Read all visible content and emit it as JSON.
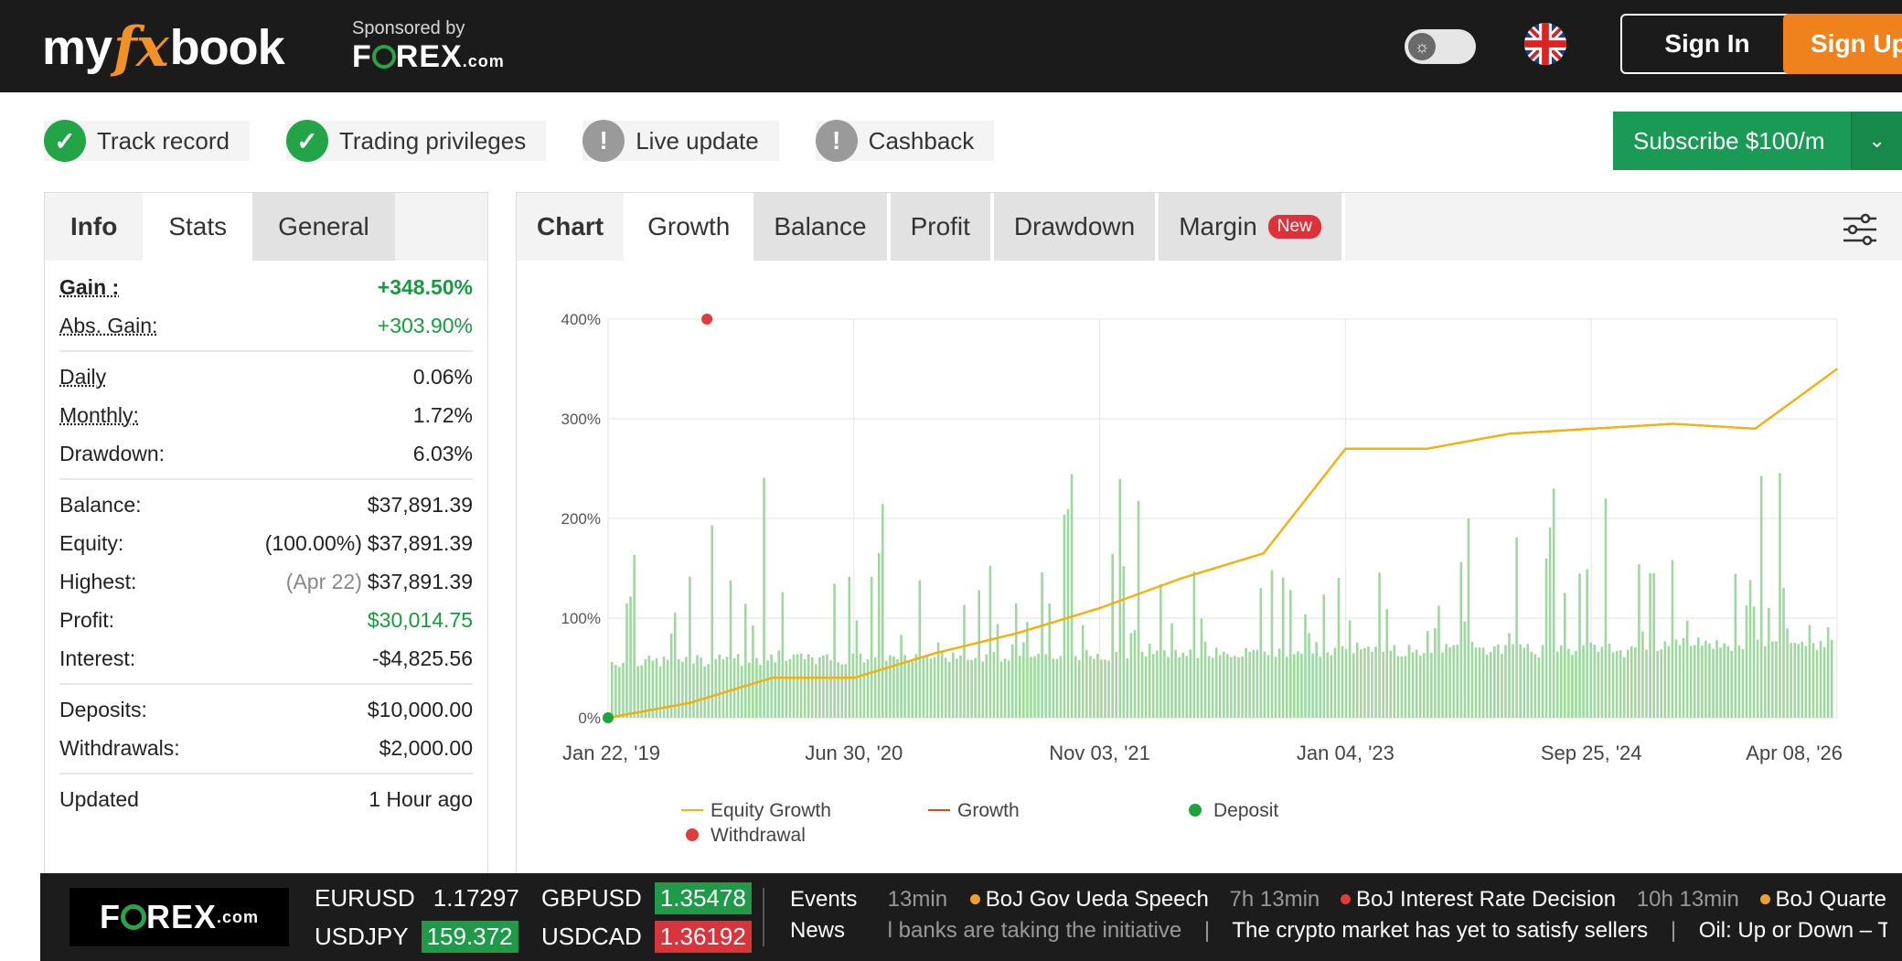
{
  "header": {
    "logo_left": "my",
    "logo_fx": "fx",
    "logo_right": "book",
    "sponsor_small": "Sponsored by",
    "sponsor_brand_a": "F",
    "sponsor_brand_b": "REX",
    "sponsor_brand_com": ".com",
    "sign_in": "Sign In",
    "sign_up": "Sign Up"
  },
  "badges": [
    {
      "label": "Track record",
      "status": "ok"
    },
    {
      "label": "Trading privileges",
      "status": "ok"
    },
    {
      "label": "Live update",
      "status": "warn"
    },
    {
      "label": "Cashback",
      "status": "warn"
    }
  ],
  "subscribe": {
    "label": "Subscribe $100/m"
  },
  "left_tabs": [
    "Info",
    "Stats",
    "General"
  ],
  "stats": {
    "gain": {
      "k": "Gain :",
      "v": "+348.50%"
    },
    "abs_gain": {
      "k": "Abs. Gain:",
      "v": "+303.90%"
    },
    "daily": {
      "k": "Daily",
      "v": "0.06%"
    },
    "monthly": {
      "k": "Monthly:",
      "v": "1.72%"
    },
    "drawdown": {
      "k": "Drawdown:",
      "v": "6.03%"
    },
    "balance": {
      "k": "Balance:",
      "v": "$37,891.39"
    },
    "equity": {
      "k": "Equity:",
      "pre": "(100.00%)",
      "v": "$37,891.39"
    },
    "highest": {
      "k": "Highest:",
      "pre": "(Apr 22)",
      "v": "$37,891.39"
    },
    "profit": {
      "k": "Profit:",
      "v": "$30,014.75"
    },
    "interest": {
      "k": "Interest:",
      "v": "-$4,825.56"
    },
    "deposits": {
      "k": "Deposits:",
      "v": "$10,000.00"
    },
    "withdrawals": {
      "k": "Withdrawals:",
      "v": "$2,000.00"
    },
    "updated": {
      "k": "Updated",
      "v": "1 Hour ago"
    }
  },
  "chart_tabs": {
    "chart": "Chart",
    "growth": "Growth",
    "balance": "Balance",
    "profit": "Profit",
    "drawdown": "Drawdown",
    "margin": "Margin",
    "new_badge": "New"
  },
  "chart_data": {
    "type": "line",
    "title": "",
    "xlabel": "",
    "ylabel": "",
    "ylim": [
      0,
      400
    ],
    "y_ticks": [
      "0%",
      "100%",
      "200%",
      "300%",
      "400%"
    ],
    "x_tick_labels": [
      "Jan 22, '19",
      "Jun 30, '20",
      "Nov 03, '21",
      "Jan 04, '23",
      "Sep 25, '24",
      "Apr 08, '26"
    ],
    "x": [
      "2019-01",
      "2019-06",
      "2019-12",
      "2020-06",
      "2020-12",
      "2021-06",
      "2021-12",
      "2022-06",
      "2022-12",
      "2023-06",
      "2023-12",
      "2024-06",
      "2024-12",
      "2025-06",
      "2025-12",
      "2026-04"
    ],
    "series": [
      {
        "name": "Equity Growth",
        "color": "#f5b400",
        "values": [
          0,
          15,
          40,
          40,
          65,
          85,
          110,
          140,
          165,
          270,
          270,
          285,
          290,
          295,
          290,
          350
        ]
      },
      {
        "name": "Growth",
        "color": "#e0481c",
        "values": [
          0,
          15,
          40,
          40,
          65,
          85,
          110,
          140,
          165,
          270,
          270,
          285,
          290,
          295,
          290,
          350
        ]
      }
    ],
    "markers": [
      {
        "name": "Deposit",
        "color": "#1fa33c",
        "x": "2019-01",
        "y": 0
      },
      {
        "name": "Withdrawal",
        "color": "#e23b3b",
        "x": "2019-08",
        "y": 400
      }
    ],
    "bars_color": "#9fd89f",
    "legend": [
      "Equity Growth",
      "Growth",
      "Deposit",
      "Withdrawal"
    ],
    "legend_position": "bottom",
    "grid": true
  },
  "ticker": {
    "brand_a": "F",
    "brand_b": "REX",
    "brand_com": ".com",
    "quotes": [
      {
        "sym": "EURUSD",
        "val": "1.17297",
        "dir": "none"
      },
      {
        "sym": "GBPUSD",
        "val": "1.35478",
        "dir": "up"
      },
      {
        "sym": "USDJPY",
        "val": "159.372",
        "dir": "up"
      },
      {
        "sym": "USDCAD",
        "val": "1.36192",
        "dir": "down"
      }
    ],
    "events_head": "Events",
    "events": [
      {
        "time": "13min",
        "title": "BoJ Gov Ueda Speech",
        "color": "#f0a030"
      },
      {
        "time": "7h 13min",
        "title": "BoJ Interest Rate Decision",
        "color": "#e23b3b"
      },
      {
        "time": "10h 13min",
        "title": "BoJ Quarterly Out",
        "color": "#f0a030"
      }
    ],
    "news_head": "News",
    "news": [
      "l banks are taking the initiative",
      "The crypto market has yet to satisfy sellers",
      "Oil: Up or Down – Take"
    ]
  }
}
